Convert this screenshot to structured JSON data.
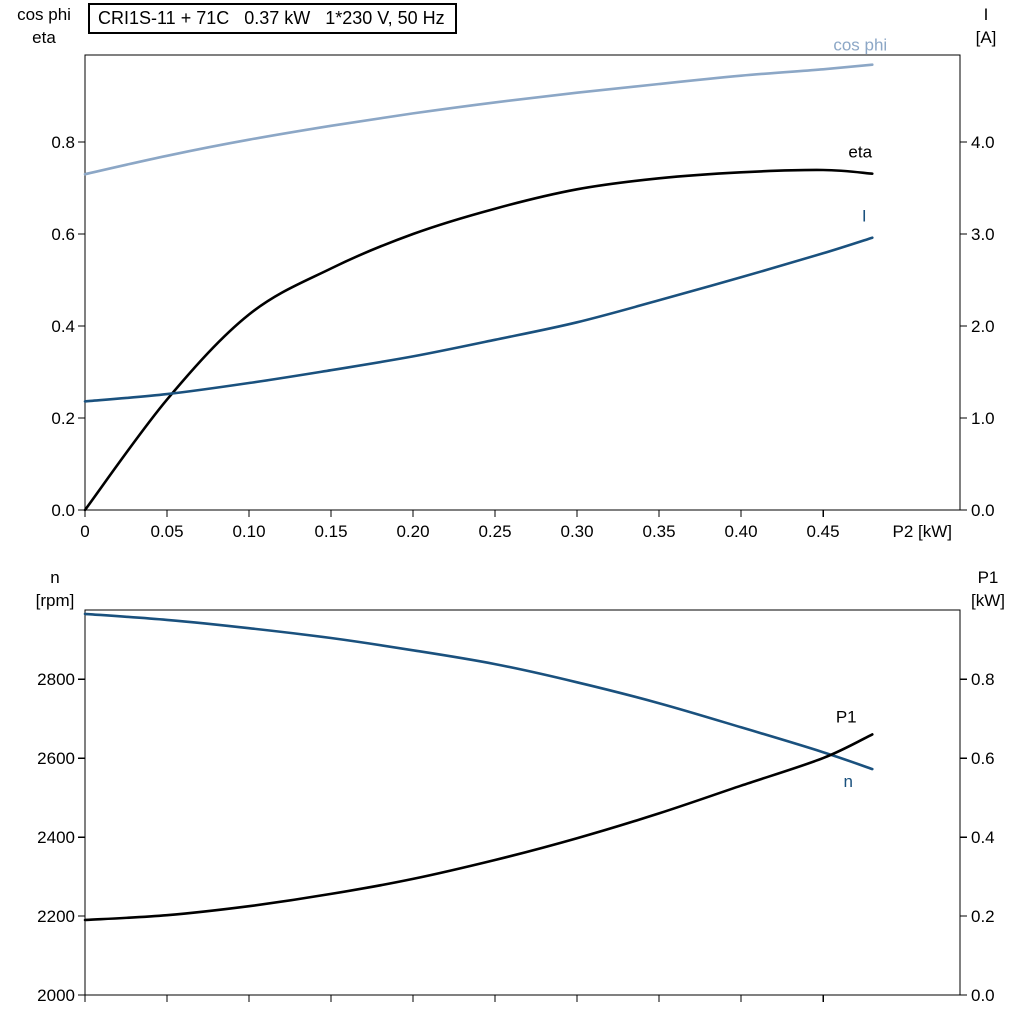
{
  "title": "CRI1S-11 + 71C   0.37 kW   1*230 V, 50 Hz",
  "colors": {
    "cos_phi": "#8ca7c6",
    "eta": "#000000",
    "current": "#1a517e",
    "speed": "#1a517e",
    "p1": "#000000",
    "axis": "#000000",
    "background": "#ffffff"
  },
  "chart_data": [
    {
      "name": "performance",
      "type": "line",
      "x": {
        "label": "P2 [kW]",
        "range": [
          0,
          0.5335
        ],
        "tick_values": [
          0,
          0.05,
          0.1,
          0.15,
          0.2,
          0.25,
          0.3,
          0.35,
          0.4,
          0.45
        ],
        "tick_labels": [
          "0",
          "0.05",
          "0.10",
          "0.15",
          "0.20",
          "0.25",
          "0.30",
          "0.35",
          "0.40",
          "0.45"
        ]
      },
      "axes": {
        "left": {
          "label_lines": [
            "cos phi",
            "eta"
          ],
          "range": [
            0,
            0.989
          ],
          "tick_values": [
            0,
            0.2,
            0.4,
            0.6,
            0.8
          ],
          "tick_labels": [
            "0.0",
            "0.2",
            "0.4",
            "0.6",
            "0.8"
          ]
        },
        "right": {
          "label_lines": [
            "I",
            "[A]"
          ],
          "range": [
            0,
            4.946
          ],
          "tick_values": [
            0,
            1,
            2,
            3,
            4
          ],
          "tick_labels": [
            "0.0",
            "1.0",
            "2.0",
            "3.0",
            "4.0"
          ]
        }
      },
      "x_values": [
        0,
        0.05,
        0.1,
        0.15,
        0.2,
        0.25,
        0.3,
        0.35,
        0.4,
        0.45,
        0.48
      ],
      "series": [
        {
          "name": "cos phi",
          "axis": "left",
          "color_key": "cos_phi",
          "values": [
            0.73,
            0.77,
            0.805,
            0.835,
            0.862,
            0.886,
            0.907,
            0.926,
            0.944,
            0.958,
            0.968
          ]
        },
        {
          "name": "eta",
          "axis": "left",
          "color_key": "eta",
          "values": [
            0,
            0.24,
            0.425,
            0.525,
            0.6,
            0.655,
            0.697,
            0.721,
            0.734,
            0.739,
            0.731
          ]
        },
        {
          "name": "I",
          "axis": "right",
          "color_key": "current",
          "values": [
            1.18,
            1.26,
            1.38,
            1.52,
            1.67,
            1.85,
            2.04,
            2.28,
            2.53,
            2.79,
            2.96
          ]
        }
      ]
    },
    {
      "name": "speed-power",
      "type": "line",
      "x": {
        "label": "",
        "range": [
          0,
          0.5335
        ],
        "tick_values": [
          0,
          0.05,
          0.1,
          0.15,
          0.2,
          0.25,
          0.3,
          0.35,
          0.4,
          0.45
        ],
        "tick_labels": []
      },
      "axes": {
        "left": {
          "label_lines": [
            "n",
            "[rpm]"
          ],
          "range": [
            2000,
            2975
          ],
          "tick_values": [
            2000,
            2200,
            2400,
            2600,
            2800
          ],
          "tick_labels": [
            "2000",
            "2200",
            "2400",
            "2600",
            "2800"
          ]
        },
        "right": {
          "label_lines": [
            "P1",
            "[kW]"
          ],
          "range": [
            0,
            0.975
          ],
          "tick_values": [
            0,
            0.2,
            0.4,
            0.6,
            0.8
          ],
          "tick_labels": [
            "0.0",
            "0.2",
            "0.4",
            "0.6",
            "0.8"
          ]
        }
      },
      "x_values": [
        0,
        0.05,
        0.1,
        0.15,
        0.2,
        0.25,
        0.3,
        0.35,
        0.4,
        0.45,
        0.48
      ],
      "series": [
        {
          "name": "n",
          "axis": "left",
          "color_key": "speed",
          "values": [
            2965,
            2950,
            2929,
            2904,
            2873,
            2838,
            2792,
            2739,
            2678,
            2615,
            2572
          ]
        },
        {
          "name": "P1",
          "axis": "right",
          "color_key": "p1",
          "values": [
            0.19,
            0.202,
            0.225,
            0.256,
            0.294,
            0.342,
            0.397,
            0.46,
            0.53,
            0.6,
            0.66
          ]
        }
      ]
    }
  ]
}
